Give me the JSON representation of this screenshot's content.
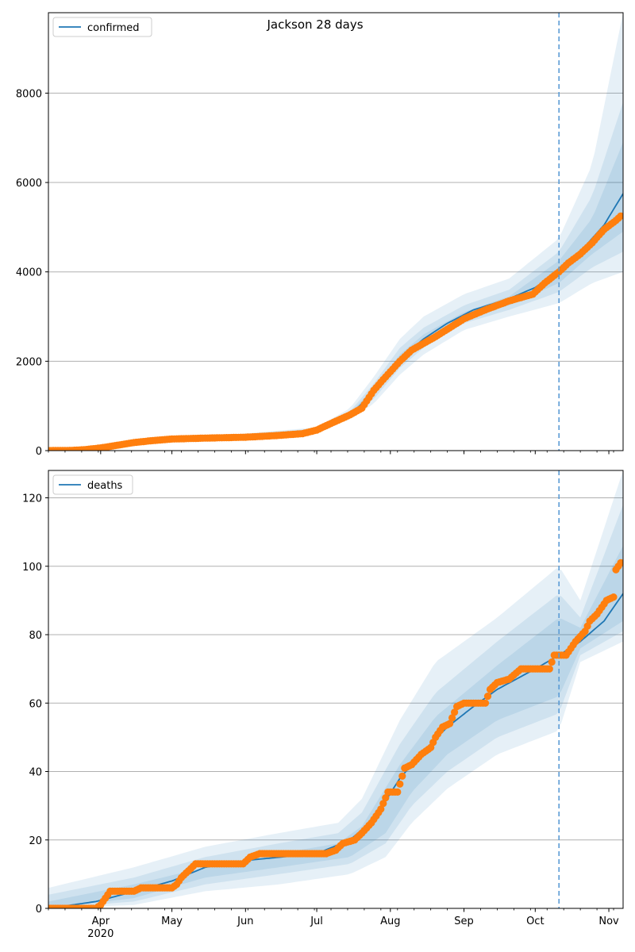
{
  "figure_title": "Jackson 28 days",
  "colors": {
    "model": "#1f77b4",
    "observed": "#ff7f0e",
    "band": "#1f77b4",
    "forecast_line": "#5a9bd5",
    "grid": "#b0b0b0"
  },
  "chart_data": [
    {
      "type": "line",
      "name": "confirmed-panel",
      "legend": "confirmed",
      "x_domain": [
        "2020-03-10",
        "2020-11-07"
      ],
      "forecast_start": "2020-10-11",
      "ylim": [
        0,
        9800
      ],
      "yticks": [
        0,
        2000,
        4000,
        6000,
        8000
      ],
      "grid": "horizontal",
      "legend_position": "top-left",
      "observed_points": [
        [
          "2020-03-10",
          0
        ],
        [
          "2020-03-20",
          5
        ],
        [
          "2020-03-25",
          20
        ],
        [
          "2020-04-01",
          60
        ],
        [
          "2020-04-08",
          120
        ],
        [
          "2020-04-15",
          180
        ],
        [
          "2020-04-22",
          220
        ],
        [
          "2020-05-01",
          260
        ],
        [
          "2020-05-15",
          280
        ],
        [
          "2020-06-01",
          300
        ],
        [
          "2020-06-15",
          340
        ],
        [
          "2020-06-25",
          380
        ],
        [
          "2020-07-01",
          460
        ],
        [
          "2020-07-05",
          560
        ],
        [
          "2020-07-10",
          680
        ],
        [
          "2020-07-15",
          800
        ],
        [
          "2020-07-20",
          950
        ],
        [
          "2020-07-25",
          1350
        ],
        [
          "2020-07-30",
          1650
        ],
        [
          "2020-08-05",
          2000
        ],
        [
          "2020-08-10",
          2250
        ],
        [
          "2020-08-20",
          2550
        ],
        [
          "2020-09-01",
          2950
        ],
        [
          "2020-09-10",
          3150
        ],
        [
          "2020-09-20",
          3350
        ],
        [
          "2020-09-30",
          3500
        ],
        [
          "2020-10-05",
          3750
        ],
        [
          "2020-10-11",
          4000
        ],
        [
          "2020-10-15",
          4200
        ],
        [
          "2020-10-20",
          4400
        ],
        [
          "2020-10-25",
          4650
        ],
        [
          "2020-10-30",
          4950
        ],
        [
          "2020-11-04",
          5150
        ],
        [
          "2020-11-06",
          5250
        ]
      ],
      "model_line": [
        [
          "2020-03-10",
          0
        ],
        [
          "2020-03-25",
          20
        ],
        [
          "2020-04-10",
          140
        ],
        [
          "2020-05-01",
          260
        ],
        [
          "2020-06-01",
          300
        ],
        [
          "2020-06-25",
          380
        ],
        [
          "2020-07-05",
          560
        ],
        [
          "2020-07-15",
          800
        ],
        [
          "2020-07-25",
          1300
        ],
        [
          "2020-08-05",
          2050
        ],
        [
          "2020-08-15",
          2500
        ],
        [
          "2020-08-25",
          2850
        ],
        [
          "2020-09-05",
          3150
        ],
        [
          "2020-09-20",
          3400
        ],
        [
          "2020-10-01",
          3650
        ],
        [
          "2020-10-11",
          4000
        ],
        [
          "2020-10-20",
          4450
        ],
        [
          "2020-10-30",
          5050
        ],
        [
          "2020-11-07",
          5750
        ]
      ],
      "bands": [
        {
          "lower": [
            [
              "2020-03-10",
              0
            ],
            [
              "2020-07-01",
              420
            ],
            [
              "2020-07-15",
              700
            ],
            [
              "2020-07-25",
              1050
            ],
            [
              "2020-08-05",
              1700
            ],
            [
              "2020-08-15",
              2150
            ],
            [
              "2020-09-01",
              2700
            ],
            [
              "2020-09-20",
              3000
            ],
            [
              "2020-10-11",
              3300
            ],
            [
              "2020-10-25",
              3750
            ],
            [
              "2020-11-07",
              4000
            ]
          ],
          "upper": [
            [
              "2020-03-10",
              10
            ],
            [
              "2020-07-01",
              520
            ],
            [
              "2020-07-15",
              950
            ],
            [
              "2020-07-25",
              1650
            ],
            [
              "2020-08-05",
              2500
            ],
            [
              "2020-08-15",
              3000
            ],
            [
              "2020-09-01",
              3500
            ],
            [
              "2020-09-20",
              3850
            ],
            [
              "2020-10-11",
              4750
            ],
            [
              "2020-10-25",
              6400
            ],
            [
              "2020-11-07",
              9800
            ]
          ]
        },
        {
          "lower": [
            [
              "2020-03-10",
              0
            ],
            [
              "2020-07-01",
              440
            ],
            [
              "2020-07-15",
              740
            ],
            [
              "2020-07-25",
              1150
            ],
            [
              "2020-08-05",
              1850
            ],
            [
              "2020-08-15",
              2300
            ],
            [
              "2020-09-01",
              2850
            ],
            [
              "2020-09-20",
              3150
            ],
            [
              "2020-10-11",
              3550
            ],
            [
              "2020-10-25",
              4100
            ],
            [
              "2020-11-07",
              4450
            ]
          ],
          "upper": [
            [
              "2020-03-10",
              5
            ],
            [
              "2020-07-01",
              500
            ],
            [
              "2020-07-15",
              880
            ],
            [
              "2020-07-25",
              1500
            ],
            [
              "2020-08-05",
              2300
            ],
            [
              "2020-08-15",
              2750
            ],
            [
              "2020-09-01",
              3250
            ],
            [
              "2020-09-20",
              3600
            ],
            [
              "2020-10-11",
              4450
            ],
            [
              "2020-10-25",
              5700
            ],
            [
              "2020-11-07",
              7800
            ]
          ]
        },
        {
          "lower": [
            [
              "2020-03-10",
              0
            ],
            [
              "2020-07-01",
              450
            ],
            [
              "2020-07-15",
              770
            ],
            [
              "2020-07-25",
              1250
            ],
            [
              "2020-08-05",
              1950
            ],
            [
              "2020-08-15",
              2400
            ],
            [
              "2020-09-01",
              2950
            ],
            [
              "2020-09-20",
              3250
            ],
            [
              "2020-10-11",
              3750
            ],
            [
              "2020-10-25",
              4400
            ],
            [
              "2020-11-07",
              4900
            ]
          ],
          "upper": [
            [
              "2020-03-10",
              3
            ],
            [
              "2020-07-01",
              480
            ],
            [
              "2020-07-15",
              840
            ],
            [
              "2020-07-25",
              1400
            ],
            [
              "2020-08-05",
              2150
            ],
            [
              "2020-08-15",
              2600
            ],
            [
              "2020-09-01",
              3100
            ],
            [
              "2020-09-20",
              3450
            ],
            [
              "2020-10-11",
              4250
            ],
            [
              "2020-10-25",
              5200
            ],
            [
              "2020-11-07",
              6900
            ]
          ]
        }
      ],
      "x_ticks": []
    },
    {
      "type": "line",
      "name": "deaths-panel",
      "legend": "deaths",
      "x_domain": [
        "2020-03-10",
        "2020-11-07"
      ],
      "forecast_start": "2020-10-11",
      "ylim": [
        0,
        128
      ],
      "yticks": [
        0,
        20,
        40,
        60,
        80,
        100,
        120
      ],
      "grid": "horizontal",
      "legend_position": "top-left",
      "observed_points": [
        [
          "2020-03-10",
          0
        ],
        [
          "2020-03-30",
          0
        ],
        [
          "2020-04-01",
          1
        ],
        [
          "2020-04-03",
          3
        ],
        [
          "2020-04-05",
          5
        ],
        [
          "2020-04-15",
          5
        ],
        [
          "2020-04-18",
          6
        ],
        [
          "2020-05-01",
          6
        ],
        [
          "2020-05-03",
          7
        ],
        [
          "2020-05-05",
          9
        ],
        [
          "2020-05-08",
          11
        ],
        [
          "2020-05-11",
          13
        ],
        [
          "2020-05-31",
          13
        ],
        [
          "2020-06-03",
          15
        ],
        [
          "2020-06-07",
          16
        ],
        [
          "2020-06-25",
          16
        ],
        [
          "2020-07-05",
          16
        ],
        [
          "2020-07-09",
          17
        ],
        [
          "2020-07-12",
          19
        ],
        [
          "2020-07-17",
          20
        ],
        [
          "2020-07-20",
          22
        ],
        [
          "2020-07-24",
          25
        ],
        [
          "2020-07-28",
          29
        ],
        [
          "2020-07-31",
          34
        ],
        [
          "2020-08-04",
          34
        ],
        [
          "2020-08-07",
          41
        ],
        [
          "2020-08-10",
          42
        ],
        [
          "2020-08-14",
          45
        ],
        [
          "2020-08-18",
          47
        ],
        [
          "2020-08-20",
          50
        ],
        [
          "2020-08-23",
          53
        ],
        [
          "2020-08-26",
          54
        ],
        [
          "2020-08-29",
          59
        ],
        [
          "2020-09-01",
          60
        ],
        [
          "2020-09-07",
          60
        ],
        [
          "2020-09-10",
          60
        ],
        [
          "2020-09-12",
          64
        ],
        [
          "2020-09-15",
          66
        ],
        [
          "2020-09-20",
          67
        ],
        [
          "2020-09-25",
          70
        ],
        [
          "2020-10-01",
          70
        ],
        [
          "2020-10-07",
          70
        ],
        [
          "2020-10-09",
          74
        ],
        [
          "2020-10-14",
          74
        ],
        [
          "2020-10-18",
          78
        ],
        [
          "2020-10-22",
          81
        ],
        [
          "2020-10-24",
          84
        ],
        [
          "2020-10-27",
          86
        ],
        [
          "2020-10-31",
          90
        ],
        [
          "2020-11-03",
          91
        ],
        [
          "2020-11-04",
          99
        ],
        [
          "2020-11-06",
          101
        ]
      ],
      "model_line": [
        [
          "2020-03-10",
          0
        ],
        [
          "2020-03-30",
          2
        ],
        [
          "2020-04-10",
          4
        ],
        [
          "2020-05-01",
          8
        ],
        [
          "2020-05-15",
          12
        ],
        [
          "2020-06-01",
          14
        ],
        [
          "2020-07-01",
          16
        ],
        [
          "2020-07-15",
          20
        ],
        [
          "2020-07-25",
          26
        ],
        [
          "2020-08-05",
          38
        ],
        [
          "2020-08-15",
          46
        ],
        [
          "2020-08-25",
          53
        ],
        [
          "2020-09-05",
          59
        ],
        [
          "2020-09-15",
          64
        ],
        [
          "2020-10-01",
          70
        ],
        [
          "2020-10-11",
          74
        ],
        [
          "2020-10-20",
          78
        ],
        [
          "2020-10-30",
          84
        ],
        [
          "2020-11-07",
          92
        ]
      ],
      "bands": [
        {
          "lower": [
            [
              "2020-03-10",
              0
            ],
            [
              "2020-04-15",
              1
            ],
            [
              "2020-05-15",
              5
            ],
            [
              "2020-06-15",
              7
            ],
            [
              "2020-07-15",
              10
            ],
            [
              "2020-07-30",
              15
            ],
            [
              "2020-08-10",
              25
            ],
            [
              "2020-08-25",
              35
            ],
            [
              "2020-09-15",
              45
            ],
            [
              "2020-10-11",
              52
            ],
            [
              "2020-10-20",
              72
            ],
            [
              "2020-11-07",
              78
            ]
          ],
          "upper": [
            [
              "2020-03-10",
              6
            ],
            [
              "2020-04-15",
              12
            ],
            [
              "2020-05-15",
              18
            ],
            [
              "2020-06-15",
              22
            ],
            [
              "2020-07-10",
              25
            ],
            [
              "2020-07-20",
              32
            ],
            [
              "2020-08-05",
              55
            ],
            [
              "2020-08-20",
              72
            ],
            [
              "2020-09-15",
              85
            ],
            [
              "2020-10-11",
              100
            ],
            [
              "2020-10-20",
              90
            ],
            [
              "2020-11-07",
              128
            ]
          ]
        },
        {
          "lower": [
            [
              "2020-03-10",
              0
            ],
            [
              "2020-04-15",
              2
            ],
            [
              "2020-05-15",
              7
            ],
            [
              "2020-06-15",
              10
            ],
            [
              "2020-07-15",
              13
            ],
            [
              "2020-07-30",
              19
            ],
            [
              "2020-08-10",
              30
            ],
            [
              "2020-08-25",
              40
            ],
            [
              "2020-09-15",
              50
            ],
            [
              "2020-10-11",
              57
            ],
            [
              "2020-10-20",
              74
            ],
            [
              "2020-11-07",
              81
            ]
          ],
          "upper": [
            [
              "2020-03-10",
              4
            ],
            [
              "2020-04-15",
              9
            ],
            [
              "2020-05-15",
              15
            ],
            [
              "2020-06-15",
              19
            ],
            [
              "2020-07-10",
              22
            ],
            [
              "2020-07-20",
              28
            ],
            [
              "2020-08-05",
              48
            ],
            [
              "2020-08-20",
              63
            ],
            [
              "2020-09-15",
              78
            ],
            [
              "2020-10-11",
              92
            ],
            [
              "2020-10-20",
              85
            ],
            [
              "2020-11-07",
              118
            ]
          ]
        },
        {
          "lower": [
            [
              "2020-03-10",
              0
            ],
            [
              "2020-04-15",
              3
            ],
            [
              "2020-05-15",
              9
            ],
            [
              "2020-06-15",
              12
            ],
            [
              "2020-07-15",
              15
            ],
            [
              "2020-07-30",
              22
            ],
            [
              "2020-08-10",
              34
            ],
            [
              "2020-08-25",
              45
            ],
            [
              "2020-09-15",
              55
            ],
            [
              "2020-10-11",
              62
            ],
            [
              "2020-10-20",
              76
            ],
            [
              "2020-11-07",
              84
            ]
          ],
          "upper": [
            [
              "2020-03-10",
              2
            ],
            [
              "2020-04-15",
              7
            ],
            [
              "2020-05-15",
              12
            ],
            [
              "2020-06-15",
              16
            ],
            [
              "2020-07-10",
              19
            ],
            [
              "2020-07-20",
              24
            ],
            [
              "2020-08-05",
              42
            ],
            [
              "2020-08-20",
              56
            ],
            [
              "2020-09-15",
              71
            ],
            [
              "2020-10-11",
              85
            ],
            [
              "2020-10-20",
              82
            ],
            [
              "2020-11-07",
              106
            ]
          ]
        }
      ],
      "x_ticks": [
        {
          "date": "2020-04-01",
          "label": "Apr"
        },
        {
          "date": "2020-05-01",
          "label": "May"
        },
        {
          "date": "2020-06-01",
          "label": "Jun"
        },
        {
          "date": "2020-07-01",
          "label": "Jul"
        },
        {
          "date": "2020-08-01",
          "label": "Aug"
        },
        {
          "date": "2020-09-01",
          "label": "Sep"
        },
        {
          "date": "2020-10-01",
          "label": "Oct"
        },
        {
          "date": "2020-11-01",
          "label": "Nov"
        }
      ],
      "year_label": "2020"
    }
  ]
}
